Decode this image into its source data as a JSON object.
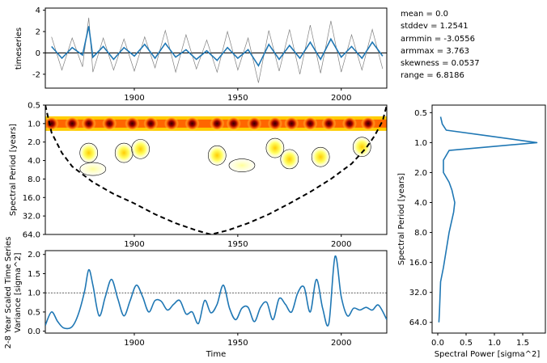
{
  "stats": [
    "mean = 0.0",
    "stddev = 1.2541",
    "armmin = -3.0556",
    "armmax = 3.763",
    "skewness = 0.0537",
    "range = 6.8186"
  ],
  "chart_data": [
    {
      "type": "line",
      "panel": "timeseries",
      "ylabel": "timeseries",
      "xlabel": "",
      "xlim": [
        1857,
        2022
      ],
      "ylim": [
        -3.3,
        4.2
      ],
      "xticks": [
        1900,
        1950,
        2000
      ],
      "yticks": [
        -2,
        0,
        2,
        4
      ],
      "x": [
        1860,
        1865,
        1870,
        1875,
        1878,
        1880,
        1885,
        1890,
        1895,
        1900,
        1905,
        1910,
        1915,
        1920,
        1925,
        1930,
        1935,
        1940,
        1945,
        1950,
        1955,
        1960,
        1965,
        1970,
        1975,
        1980,
        1985,
        1990,
        1995,
        2000,
        2005,
        2010,
        2015,
        2020
      ],
      "series": [
        {
          "role": "raw",
          "color": "#808080",
          "values": [
            1.5,
            -1.6,
            1.4,
            -1.3,
            3.3,
            -1.8,
            1.4,
            -1.6,
            1.3,
            -1.7,
            1.5,
            -1.4,
            2.1,
            -1.8,
            1.7,
            -1.5,
            1.2,
            -1.8,
            2.0,
            -1.6,
            1.4,
            -2.8,
            2.1,
            -1.7,
            2.2,
            -2.0,
            2.6,
            -1.9,
            3.0,
            -1.8,
            1.7,
            -1.6,
            2.2,
            -1.5
          ]
        },
        {
          "role": "smoothed",
          "color": "#1f77b4",
          "values": [
            0.6,
            -0.5,
            0.5,
            -0.2,
            2.5,
            -0.4,
            0.6,
            -0.6,
            0.5,
            -0.3,
            0.8,
            -0.5,
            0.9,
            -0.4,
            0.3,
            -0.6,
            0.2,
            -0.7,
            0.5,
            -0.5,
            0.3,
            -1.2,
            0.8,
            -0.6,
            0.7,
            -0.5,
            1.0,
            -0.6,
            1.3,
            -0.4,
            0.6,
            -0.5,
            1.0,
            -0.3
          ]
        }
      ],
      "mean_line": 0
    },
    {
      "type": "heatmap",
      "panel": "wavelet_power_spectrum",
      "ylabel": "Spectral Period [years]",
      "xlabel": "",
      "xlim": [
        1857,
        2022
      ],
      "yscale": "log2",
      "ylim": [
        0.5,
        64
      ],
      "yticks": [
        "0.5",
        "1.0",
        "2.0",
        "4.0",
        "8.0",
        "16.0",
        "32.0",
        "64.0"
      ],
      "xticks": [
        1900,
        1950,
        2000
      ],
      "colormap": [
        "#ffffcc",
        "#ffff66",
        "#ffcc00",
        "#ff6600",
        "#cc0000",
        "#330000"
      ],
      "annual_band_period": 1.0,
      "annual_hotspots_x": [
        1860,
        1870,
        1878,
        1888,
        1899,
        1908,
        1918,
        1928,
        1940,
        1948,
        1958,
        1968,
        1976,
        1985,
        1994,
        2004,
        2013
      ],
      "blobs": [
        {
          "x": 1878,
          "period": 3.0,
          "level": 2
        },
        {
          "x": 1895,
          "period": 3.0,
          "level": 2
        },
        {
          "x": 1903,
          "period": 2.6,
          "level": 2
        },
        {
          "x": 1940,
          "period": 3.3,
          "level": 2
        },
        {
          "x": 1968,
          "period": 2.5,
          "level": 2
        },
        {
          "x": 1975,
          "period": 3.8,
          "level": 2
        },
        {
          "x": 1990,
          "period": 3.5,
          "level": 2
        },
        {
          "x": 2010,
          "period": 2.4,
          "level": 2
        },
        {
          "x": 1952,
          "period": 4.8,
          "level": 1
        },
        {
          "x": 1880,
          "period": 5.5,
          "level": 1
        }
      ],
      "cone_of_influence": {
        "x": [
          1857,
          1860,
          1865,
          1870,
          1880,
          1890,
          1900,
          1910,
          1920,
          1930,
          1937,
          1945,
          1955,
          1965,
          1975,
          1985,
          1995,
          2005,
          2012,
          2016,
          2020,
          2022
        ],
        "period": [
          0.5,
          1.4,
          3.0,
          5.0,
          9.0,
          14.0,
          20.0,
          30.0,
          42.0,
          55.0,
          64.0,
          55.0,
          42.0,
          30.0,
          20.0,
          13.0,
          8.0,
          4.5,
          2.5,
          1.6,
          0.9,
          0.5
        ]
      }
    },
    {
      "type": "line",
      "panel": "scaled_averaged_variance",
      "ylabel": "2-8 Year Scaled Time Series\nVariance [sigma^2]",
      "xlabel": "Time",
      "xlim": [
        1857,
        2022
      ],
      "ylim": [
        -0.05,
        2.1
      ],
      "xticks": [
        1900,
        1950,
        2000
      ],
      "yticks": [
        0.0,
        0.5,
        1.0,
        1.5,
        2.0
      ],
      "significance_level": 1.0,
      "x": [
        1857,
        1860,
        1863,
        1866,
        1870,
        1873,
        1876,
        1878,
        1880,
        1883,
        1886,
        1889,
        1892,
        1895,
        1898,
        1901,
        1904,
        1907,
        1910,
        1913,
        1916,
        1919,
        1922,
        1925,
        1928,
        1931,
        1934,
        1937,
        1940,
        1943,
        1946,
        1949,
        1952,
        1955,
        1958,
        1961,
        1964,
        1967,
        1970,
        1973,
        1976,
        1979,
        1982,
        1985,
        1988,
        1991,
        1994,
        1997,
        2000,
        2003,
        2006,
        2009,
        2012,
        2015,
        2018,
        2022
      ],
      "series": [
        {
          "name": "",
          "color": "#1f77b4",
          "values": [
            0.15,
            0.5,
            0.25,
            0.08,
            0.12,
            0.45,
            1.05,
            1.6,
            1.2,
            0.4,
            0.9,
            1.35,
            0.85,
            0.4,
            0.8,
            1.2,
            0.9,
            0.5,
            0.8,
            0.78,
            0.55,
            0.7,
            0.8,
            0.45,
            0.5,
            0.2,
            0.8,
            0.48,
            0.7,
            1.2,
            0.6,
            0.3,
            0.6,
            0.62,
            0.25,
            0.62,
            0.75,
            0.3,
            0.85,
            0.7,
            0.5,
            1.0,
            1.15,
            0.5,
            1.35,
            0.6,
            0.2,
            1.95,
            0.9,
            0.4,
            0.6,
            0.55,
            0.62,
            0.55,
            0.68,
            0.3
          ]
        }
      ]
    },
    {
      "type": "line",
      "panel": "global_spectrum",
      "ylabel": "Spectral Period [years]",
      "xlabel": "Spectral Power [sigma^2]",
      "yscale": "log2",
      "ylim": [
        0.42,
        82
      ],
      "xlim": [
        -0.1,
        1.9
      ],
      "yticks": [
        "0.5",
        "1.0",
        "2.0",
        "4.0",
        "8.0",
        "16.0",
        "32.0",
        "64.0"
      ],
      "xticks": [
        "0.0",
        "0.5",
        "1.0",
        "1.5"
      ],
      "x": [
        0.05,
        0.08,
        0.15,
        0.85,
        1.75,
        0.2,
        0.1,
        0.1,
        0.2,
        0.25,
        0.3,
        0.28,
        0.2,
        0.15,
        0.1,
        0.05,
        0.04,
        0.03,
        0.02
      ],
      "period": [
        0.55,
        0.65,
        0.75,
        0.85,
        1.0,
        1.2,
        1.5,
        2.0,
        2.5,
        3.0,
        4.0,
        5.0,
        8.0,
        12.0,
        18.0,
        25.0,
        35.0,
        50.0,
        64.0
      ],
      "color": "#1f77b4"
    }
  ]
}
